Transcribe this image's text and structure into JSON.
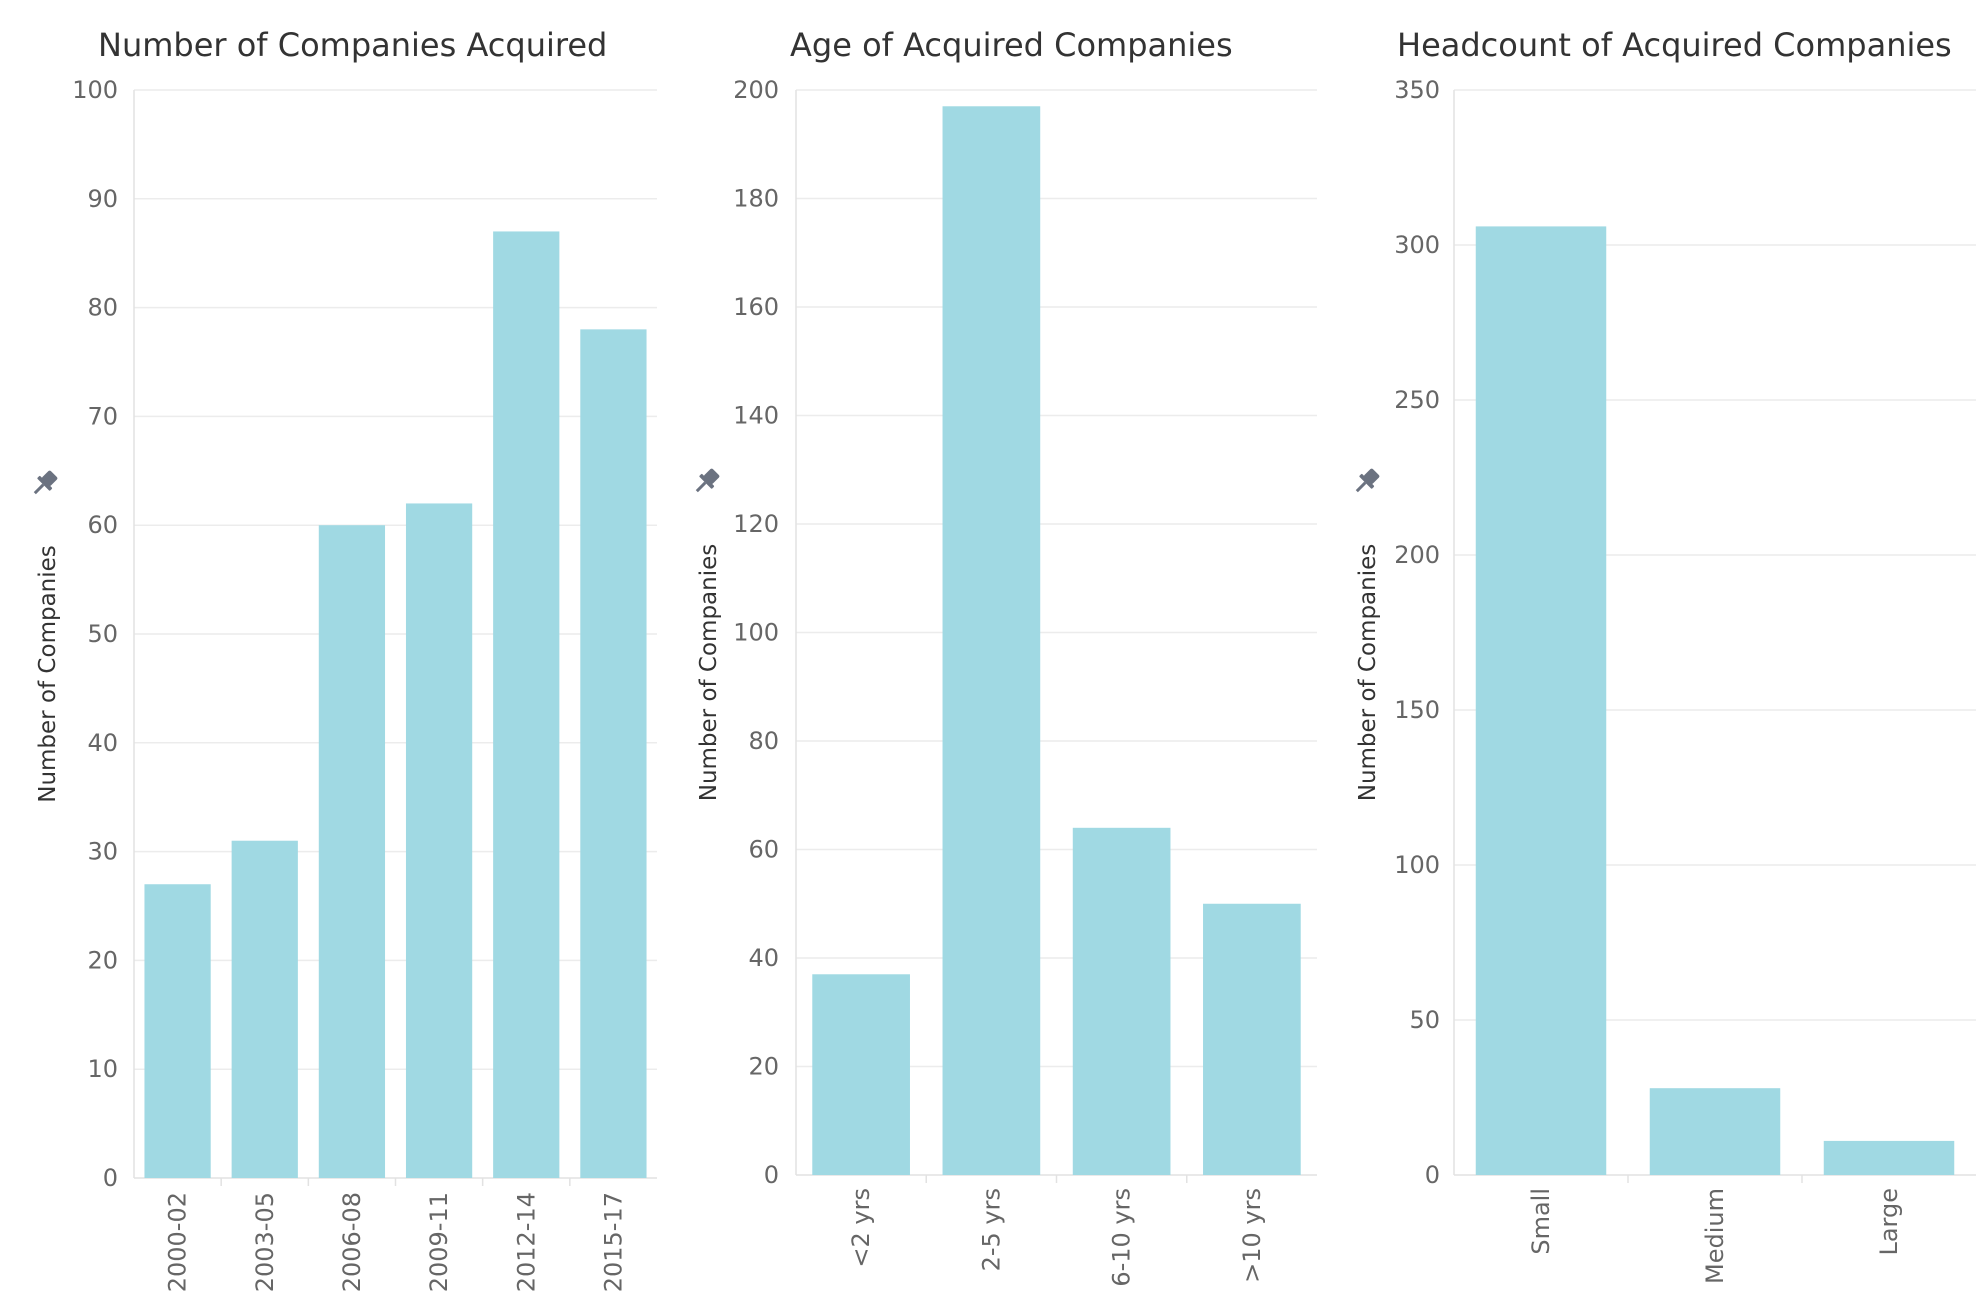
{
  "colors": {
    "bar": "#a0d9e3",
    "grid": "#ececec",
    "text": "#333333",
    "tick": "#666666",
    "pin_icon": "#6b7280"
  },
  "icons": {
    "axis_pin": "pin-icon"
  },
  "chart_data": [
    {
      "type": "bar",
      "title": "Number of Companies Acquired",
      "ylabel": "Number of Companies",
      "xlabel": "",
      "categories": [
        "2000-02",
        "2003-05",
        "2006-08",
        "2009-11",
        "2012-14",
        "2015-17"
      ],
      "values": [
        27,
        31,
        60,
        62,
        87,
        78
      ],
      "ylim": [
        0,
        100
      ],
      "yticks": [
        0,
        10,
        20,
        30,
        40,
        50,
        60,
        70,
        80,
        90,
        100
      ],
      "grid": true,
      "category_label_rotation": "vertical"
    },
    {
      "type": "bar",
      "title": "Age of Acquired Companies",
      "ylabel": "Number of Companies",
      "xlabel": "",
      "categories": [
        "<2 yrs",
        "2-5 yrs",
        "6-10 yrs",
        ">10 yrs"
      ],
      "values": [
        37,
        197,
        64,
        50
      ],
      "ylim": [
        0,
        200
      ],
      "yticks": [
        0,
        20,
        40,
        60,
        80,
        100,
        120,
        140,
        160,
        180,
        200
      ],
      "grid": true,
      "category_label_rotation": "vertical"
    },
    {
      "type": "bar",
      "title": "Headcount of Acquired Companies",
      "ylabel": "Number of Companies",
      "xlabel": "",
      "categories": [
        "Small",
        "Medium",
        "Large"
      ],
      "values": [
        306,
        28,
        11
      ],
      "ylim": [
        0,
        350
      ],
      "yticks": [
        0,
        50,
        100,
        150,
        200,
        250,
        300,
        350
      ],
      "grid": true,
      "category_label_rotation": "vertical"
    }
  ]
}
